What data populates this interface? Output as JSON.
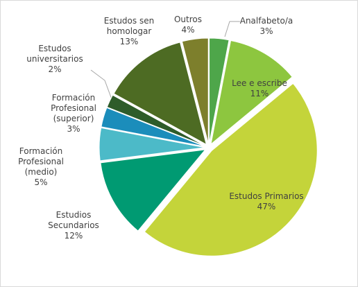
{
  "chart_data": {
    "type": "pie",
    "categories": [
      "Analfabeto/a",
      "Lee e escribe",
      "Estudos Primarios",
      "Estudios Secundarios",
      "Formación Profesional (medio)",
      "Formación Profesional (superior)",
      "Estudos universitarios",
      "Estudos sen homologar",
      "Outros"
    ],
    "values": [
      3,
      11,
      47,
      12,
      5,
      3,
      2,
      13,
      4
    ],
    "value_labels": [
      "3%",
      "11%",
      "47%",
      "12%",
      "5%",
      "3%",
      "2%",
      "13%",
      "4%"
    ],
    "colors": [
      "#4ea64a",
      "#8dc63f",
      "#c4d43a",
      "#009a72",
      "#4cbac8",
      "#1b8dbb",
      "#2e5c2a",
      "#4d6b23",
      "#7d7f2c"
    ]
  }
}
